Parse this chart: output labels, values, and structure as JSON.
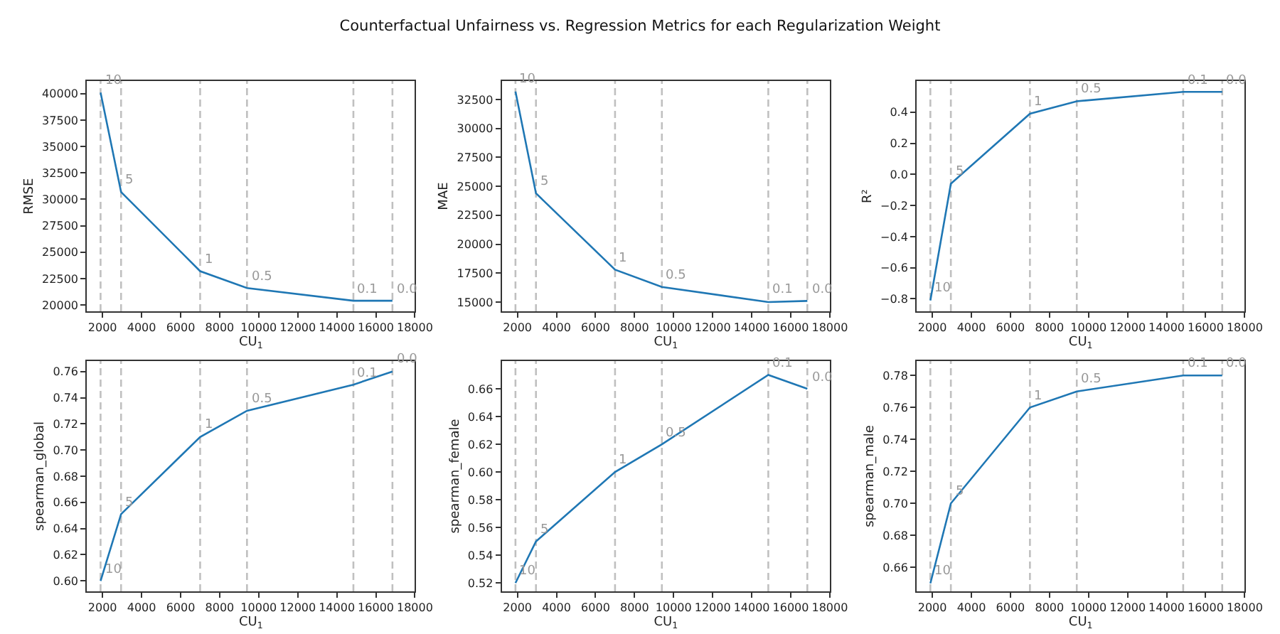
{
  "chart_data": [
    {
      "type": "line",
      "title": "Counterfactual Unfairness vs. Regression Metrics for each Regularization Weight",
      "xlabel": "CU$_{1}$",
      "ylabel": "RMSE",
      "x": [
        1900,
        2950,
        7000,
        9400,
        14850,
        16850
      ],
      "series": [
        {
          "color": "#1f77b4",
          "values": [
            40100,
            30700,
            23200,
            21600,
            20400,
            20400
          ]
        }
      ],
      "xlim": [
        1200,
        18000
      ],
      "xticks": [
        2000,
        4000,
        6000,
        8000,
        10000,
        12000,
        14000,
        16000,
        18000
      ],
      "ylim": [
        19400,
        41200
      ],
      "yticks": [
        20000,
        22500,
        25000,
        27500,
        30000,
        32500,
        35000,
        37500,
        40000
      ],
      "grid": false,
      "ref_lines": [
        {
          "axis": "x",
          "value": 1900,
          "color": "#c0c0c0",
          "line_style": "dashed"
        },
        {
          "axis": "x",
          "value": 2950,
          "color": "#c0c0c0",
          "line_style": "dashed"
        },
        {
          "axis": "x",
          "value": 7000,
          "color": "#c0c0c0",
          "line_style": "dashed"
        },
        {
          "axis": "x",
          "value": 9400,
          "color": "#c0c0c0",
          "line_style": "dashed"
        },
        {
          "axis": "x",
          "value": 14850,
          "color": "#c0c0c0",
          "line_style": "dashed"
        },
        {
          "axis": "x",
          "value": 16850,
          "color": "#c0c0c0",
          "line_style": "dashed"
        }
      ],
      "annotations": [
        {
          "text": "10",
          "x": 1900,
          "y": 40100
        },
        {
          "text": "5",
          "x": 2950,
          "y": 30700
        },
        {
          "text": "1",
          "x": 7000,
          "y": 23200
        },
        {
          "text": "0.5",
          "x": 9400,
          "y": 21600
        },
        {
          "text": "0.1",
          "x": 14850,
          "y": 20400
        },
        {
          "text": "0.0",
          "x": 16850,
          "y": 20400
        }
      ]
    },
    {
      "type": "line",
      "xlabel": "CU$_{1}$",
      "ylabel": "MAE",
      "x": [
        1900,
        2950,
        7000,
        9400,
        14850,
        16850
      ],
      "series": [
        {
          "color": "#1f77b4",
          "values": [
            33200,
            24400,
            17800,
            16300,
            15000,
            15100
          ]
        }
      ],
      "xlim": [
        1200,
        18000
      ],
      "xticks": [
        2000,
        4000,
        6000,
        8000,
        10000,
        12000,
        14000,
        16000,
        18000
      ],
      "ylim": [
        14200,
        34100
      ],
      "yticks": [
        15000,
        17500,
        20000,
        22500,
        25000,
        27500,
        30000,
        32500
      ],
      "grid": false,
      "ref_lines": [
        {
          "axis": "x",
          "value": 1900,
          "color": "#c0c0c0",
          "line_style": "dashed"
        },
        {
          "axis": "x",
          "value": 2950,
          "color": "#c0c0c0",
          "line_style": "dashed"
        },
        {
          "axis": "x",
          "value": 7000,
          "color": "#c0c0c0",
          "line_style": "dashed"
        },
        {
          "axis": "x",
          "value": 9400,
          "color": "#c0c0c0",
          "line_style": "dashed"
        },
        {
          "axis": "x",
          "value": 14850,
          "color": "#c0c0c0",
          "line_style": "dashed"
        },
        {
          "axis": "x",
          "value": 16850,
          "color": "#c0c0c0",
          "line_style": "dashed"
        }
      ],
      "annotations": [
        {
          "text": "10",
          "x": 1900,
          "y": 33200
        },
        {
          "text": "5",
          "x": 2950,
          "y": 24400
        },
        {
          "text": "1",
          "x": 7000,
          "y": 17800
        },
        {
          "text": "0.5",
          "x": 9400,
          "y": 16300
        },
        {
          "text": "0.1",
          "x": 14850,
          "y": 15000
        },
        {
          "text": "0.0",
          "x": 16850,
          "y": 15100
        }
      ]
    },
    {
      "type": "line",
      "xlabel": "CU$_{1}$",
      "ylabel": "R²",
      "x": [
        1900,
        2950,
        7000,
        9400,
        14850,
        16850
      ],
      "series": [
        {
          "color": "#1f77b4",
          "values": [
            -0.81,
            -0.06,
            0.39,
            0.47,
            0.53,
            0.53
          ]
        }
      ],
      "xlim": [
        1200,
        18000
      ],
      "xticks": [
        2000,
        4000,
        6000,
        8000,
        10000,
        12000,
        14000,
        16000,
        18000
      ],
      "ylim": [
        -0.88,
        0.6
      ],
      "yticks": [
        {
          "value": -0.8,
          "label": "−0.8"
        },
        {
          "value": -0.6,
          "label": "−0.6"
        },
        {
          "value": -0.4,
          "label": "−0.4"
        },
        {
          "value": -0.2,
          "label": "−0.2"
        },
        {
          "value": 0,
          "label": "0.0"
        },
        0.2,
        0.4
      ],
      "grid": false,
      "ref_lines": [
        {
          "axis": "x",
          "value": 1900,
          "color": "#c0c0c0",
          "line_style": "dashed"
        },
        {
          "axis": "x",
          "value": 2950,
          "color": "#c0c0c0",
          "line_style": "dashed"
        },
        {
          "axis": "x",
          "value": 7000,
          "color": "#c0c0c0",
          "line_style": "dashed"
        },
        {
          "axis": "x",
          "value": 9400,
          "color": "#c0c0c0",
          "line_style": "dashed"
        },
        {
          "axis": "x",
          "value": 14850,
          "color": "#c0c0c0",
          "line_style": "dashed"
        },
        {
          "axis": "x",
          "value": 16850,
          "color": "#c0c0c0",
          "line_style": "dashed"
        }
      ],
      "annotations": [
        {
          "text": "10",
          "x": 1900,
          "y": -0.81
        },
        {
          "text": "5",
          "x": 2950,
          "y": -0.06
        },
        {
          "text": "1",
          "x": 7000,
          "y": 0.39
        },
        {
          "text": "0.5",
          "x": 9400,
          "y": 0.47
        },
        {
          "text": "0.1",
          "x": 14850,
          "y": 0.53
        },
        {
          "text": "0.0",
          "x": 16850,
          "y": 0.53
        }
      ]
    },
    {
      "type": "line",
      "xlabel": "CU$_{1}$",
      "ylabel": "spearman_global",
      "x": [
        1900,
        2950,
        7000,
        9400,
        14850,
        16850
      ],
      "series": [
        {
          "color": "#1f77b4",
          "values": [
            0.6,
            0.651,
            0.71,
            0.73,
            0.75,
            0.76
          ]
        }
      ],
      "xlim": [
        1200,
        18000
      ],
      "xticks": [
        2000,
        4000,
        6000,
        8000,
        10000,
        12000,
        14000,
        16000,
        18000
      ],
      "ylim": [
        0.592,
        0.768
      ],
      "yticks": [
        {
          "value": 0.6,
          "label": "0.60"
        },
        0.62,
        0.64,
        0.66,
        0.68,
        {
          "value": 0.7,
          "label": "0.70"
        },
        0.72,
        0.74,
        0.76
      ],
      "grid": false,
      "ref_lines": [
        {
          "axis": "x",
          "value": 1900,
          "color": "#c0c0c0",
          "line_style": "dashed"
        },
        {
          "axis": "x",
          "value": 2950,
          "color": "#c0c0c0",
          "line_style": "dashed"
        },
        {
          "axis": "x",
          "value": 7000,
          "color": "#c0c0c0",
          "line_style": "dashed"
        },
        {
          "axis": "x",
          "value": 9400,
          "color": "#c0c0c0",
          "line_style": "dashed"
        },
        {
          "axis": "x",
          "value": 14850,
          "color": "#c0c0c0",
          "line_style": "dashed"
        },
        {
          "axis": "x",
          "value": 16850,
          "color": "#c0c0c0",
          "line_style": "dashed"
        }
      ],
      "annotations": [
        {
          "text": "10",
          "x": 1900,
          "y": 0.6
        },
        {
          "text": "5",
          "x": 2950,
          "y": 0.651
        },
        {
          "text": "1",
          "x": 7000,
          "y": 0.71
        },
        {
          "text": "0.5",
          "x": 9400,
          "y": 0.73
        },
        {
          "text": "0.1",
          "x": 14850,
          "y": 0.75
        },
        {
          "text": "0.0",
          "x": 16850,
          "y": 0.76
        }
      ]
    },
    {
      "type": "line",
      "xlabel": "CU$_{1}$",
      "ylabel": "spearman_female",
      "x": [
        1900,
        2950,
        7000,
        9400,
        14850,
        16850
      ],
      "series": [
        {
          "color": "#1f77b4",
          "values": [
            0.52,
            0.55,
            0.6,
            0.62,
            0.67,
            0.66
          ]
        }
      ],
      "xlim": [
        1200,
        18000
      ],
      "xticks": [
        2000,
        4000,
        6000,
        8000,
        10000,
        12000,
        14000,
        16000,
        18000
      ],
      "ylim": [
        0.514,
        0.68
      ],
      "yticks": [
        0.52,
        0.54,
        0.56,
        0.58,
        {
          "value": 0.6,
          "label": "0.60"
        },
        0.62,
        0.64,
        0.66
      ],
      "grid": false,
      "ref_lines": [
        {
          "axis": "x",
          "value": 1900,
          "color": "#c0c0c0",
          "line_style": "dashed"
        },
        {
          "axis": "x",
          "value": 2950,
          "color": "#c0c0c0",
          "line_style": "dashed"
        },
        {
          "axis": "x",
          "value": 7000,
          "color": "#c0c0c0",
          "line_style": "dashed"
        },
        {
          "axis": "x",
          "value": 9400,
          "color": "#c0c0c0",
          "line_style": "dashed"
        },
        {
          "axis": "x",
          "value": 14850,
          "color": "#c0c0c0",
          "line_style": "dashed"
        },
        {
          "axis": "x",
          "value": 16850,
          "color": "#c0c0c0",
          "line_style": "dashed"
        }
      ],
      "annotations": [
        {
          "text": "10",
          "x": 1900,
          "y": 0.52
        },
        {
          "text": "5",
          "x": 2950,
          "y": 0.55
        },
        {
          "text": "1",
          "x": 7000,
          "y": 0.6
        },
        {
          "text": "0.5",
          "x": 9400,
          "y": 0.62
        },
        {
          "text": "0.1",
          "x": 14850,
          "y": 0.67
        },
        {
          "text": "0.0",
          "x": 16850,
          "y": 0.66
        }
      ]
    },
    {
      "type": "line",
      "xlabel": "CU$_{1}$",
      "ylabel": "spearman_male",
      "x": [
        1900,
        2950,
        7000,
        9400,
        14850,
        16850
      ],
      "series": [
        {
          "color": "#1f77b4",
          "values": [
            0.65,
            0.7,
            0.76,
            0.77,
            0.78,
            0.78
          ]
        }
      ],
      "xlim": [
        1200,
        18000
      ],
      "xticks": [
        2000,
        4000,
        6000,
        8000,
        10000,
        12000,
        14000,
        16000,
        18000
      ],
      "ylim": [
        0.645,
        0.789
      ],
      "yticks": [
        0.66,
        0.68,
        {
          "value": 0.7,
          "label": "0.70"
        },
        0.72,
        0.74,
        0.76,
        0.78
      ],
      "grid": false,
      "ref_lines": [
        {
          "axis": "x",
          "value": 1900,
          "color": "#c0c0c0",
          "line_style": "dashed"
        },
        {
          "axis": "x",
          "value": 2950,
          "color": "#c0c0c0",
          "line_style": "dashed"
        },
        {
          "axis": "x",
          "value": 7000,
          "color": "#c0c0c0",
          "line_style": "dashed"
        },
        {
          "axis": "x",
          "value": 9400,
          "color": "#c0c0c0",
          "line_style": "dashed"
        },
        {
          "axis": "x",
          "value": 14850,
          "color": "#c0c0c0",
          "line_style": "dashed"
        },
        {
          "axis": "x",
          "value": 16850,
          "color": "#c0c0c0",
          "line_style": "dashed"
        }
      ],
      "annotations": [
        {
          "text": "10",
          "x": 1900,
          "y": 0.65
        },
        {
          "text": "5",
          "x": 2950,
          "y": 0.7
        },
        {
          "text": "1",
          "x": 7000,
          "y": 0.76
        },
        {
          "text": "0.5",
          "x": 9400,
          "y": 0.77
        },
        {
          "text": "0.1",
          "x": 14850,
          "y": 0.78
        },
        {
          "text": "0.0",
          "x": 16850,
          "y": 0.78
        }
      ]
    }
  ]
}
